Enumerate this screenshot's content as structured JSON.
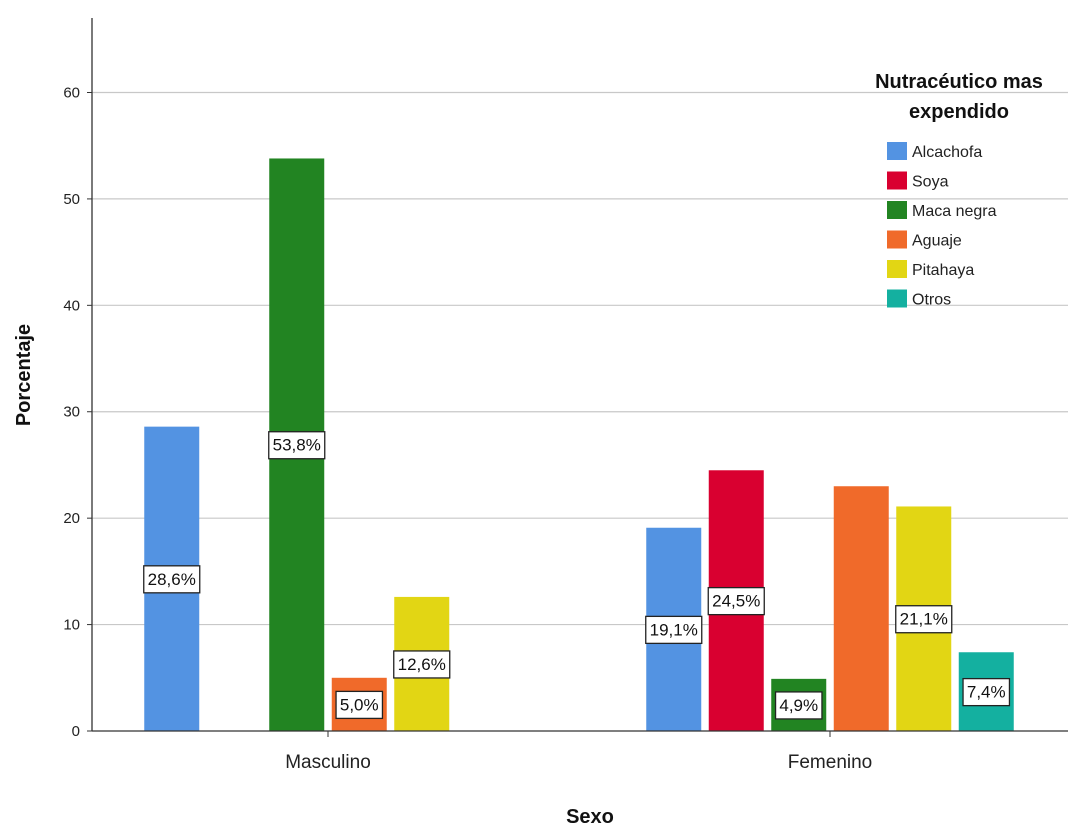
{
  "chart_data": {
    "type": "bar",
    "title": "",
    "xlabel": "Sexo",
    "ylabel": "Porcentaje",
    "ylim": [
      0,
      67
    ],
    "yticks": [
      0,
      10,
      20,
      30,
      40,
      50,
      60
    ],
    "grid": true,
    "legend_title": "Nutracéutico mas expendido",
    "legend_title_lines": [
      "Nutracéutico mas",
      "expendido"
    ],
    "legend_position": "top-right",
    "categories": [
      "Masculino",
      "Femenino"
    ],
    "series": [
      {
        "name": "Alcachofa",
        "color": "#5393e2",
        "values": [
          28.6,
          19.1
        ],
        "labels": [
          "28,6%",
          "19,1%"
        ]
      },
      {
        "name": "Soya",
        "color": "#d90030",
        "values": [
          null,
          24.5
        ],
        "labels": [
          "",
          "24,5%"
        ]
      },
      {
        "name": "Maca negra",
        "color": "#228422",
        "values": [
          53.8,
          4.9
        ],
        "labels": [
          "53,8%",
          "4,9%"
        ]
      },
      {
        "name": "Aguaje",
        "color": "#f06a2a",
        "values": [
          5.0,
          23.0
        ],
        "labels": [
          "5,0%",
          ""
        ]
      },
      {
        "name": "Pitahaya",
        "color": "#e2d614",
        "values": [
          12.6,
          21.1
        ],
        "labels": [
          "12,6%",
          "21,1%"
        ]
      },
      {
        "name": "Otros",
        "color": "#14b0a0",
        "values": [
          null,
          7.4
        ],
        "labels": [
          "",
          "7,4%"
        ]
      }
    ]
  }
}
